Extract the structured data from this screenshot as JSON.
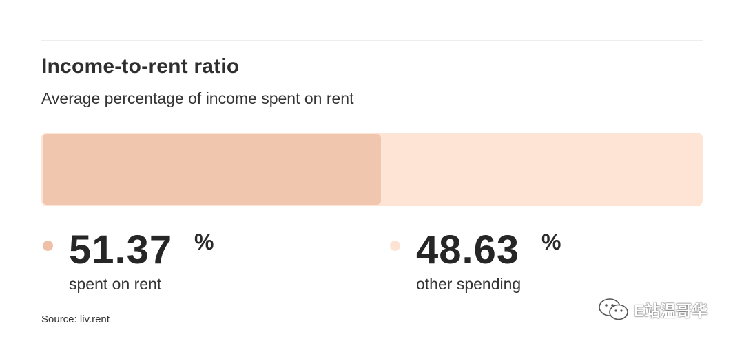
{
  "header": {
    "title": "Income-to-rent ratio",
    "subtitle": "Average percentage of income spent on rent"
  },
  "chart_data": {
    "type": "bar",
    "orientation": "horizontal-stacked",
    "title": "Income-to-rent ratio",
    "subtitle": "Average percentage of income spent on rent",
    "unit": "%",
    "series": [
      {
        "name": "spent on rent",
        "value": 51.37,
        "display": "51.37",
        "color": "#f1c6ae",
        "dot_color": "#efbfa6"
      },
      {
        "name": "other spending",
        "value": 48.63,
        "display": "48.63",
        "color": "#fee4d5",
        "dot_color": "#fde3d4"
      }
    ],
    "source": "Source: liv.rent"
  },
  "watermark": {
    "text": "E站温哥华",
    "icon": "wechat-icon"
  }
}
